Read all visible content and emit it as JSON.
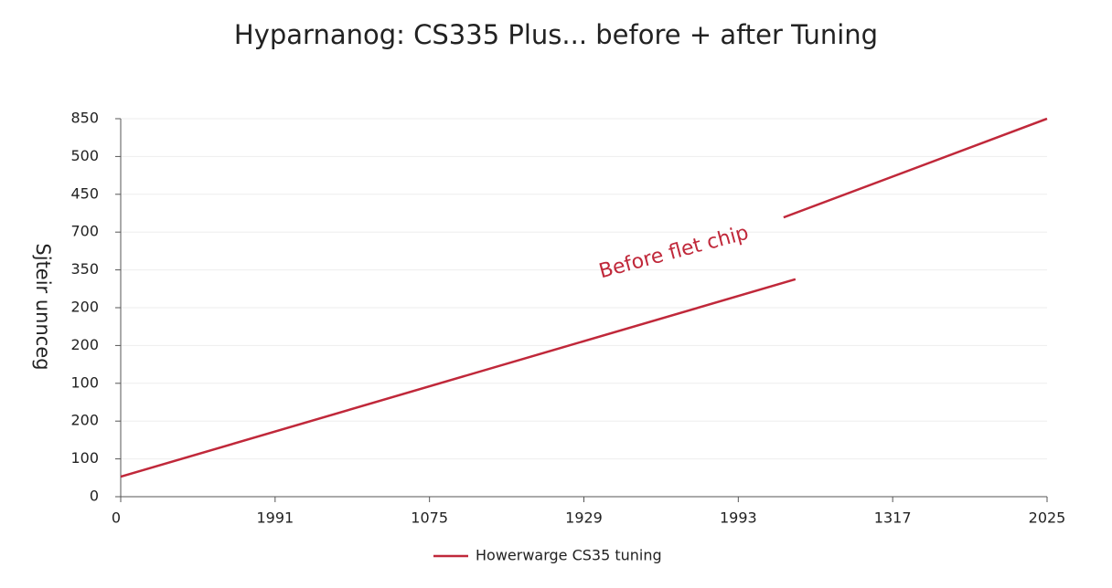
{
  "chart_data": {
    "type": "line",
    "title": "Hyparnanog: CS335 Plus...  before + after Tuning",
    "y_label": "Sjteir unnceg",
    "annotation": "Before flet chip",
    "xlim": [
      0,
      2025
    ],
    "xticks": [
      0,
      {
        "value": 337.5,
        "label": "1991"
      },
      {
        "value": 675,
        "label": "1075"
      },
      {
        "value": 1012.5,
        "label": "1929"
      },
      {
        "value": 1350,
        "label": "1993"
      },
      {
        "value": 1687.5,
        "label": "1317"
      },
      2025
    ],
    "ylim": [
      0,
      850
    ],
    "yticks": [
      0,
      {
        "value": 85,
        "label": "100"
      },
      {
        "value": 170,
        "label": "200"
      },
      {
        "value": 255,
        "label": "100"
      },
      {
        "value": 340,
        "label": "200"
      },
      {
        "value": 425,
        "label": "200"
      },
      {
        "value": 510,
        "label": "350"
      },
      {
        "value": 595,
        "label": "700"
      },
      {
        "value": 680,
        "label": "450"
      },
      {
        "value": 765,
        "label": "500"
      },
      850
    ],
    "grid": true,
    "series": [
      {
        "name": "Howerwarge CS35 tuning",
        "color": "#c0283a",
        "x": [
          0,
          1475,
          null,
          1449,
          2025
        ],
        "values": [
          45,
          489,
          null,
          628,
          850
        ]
      }
    ]
  }
}
